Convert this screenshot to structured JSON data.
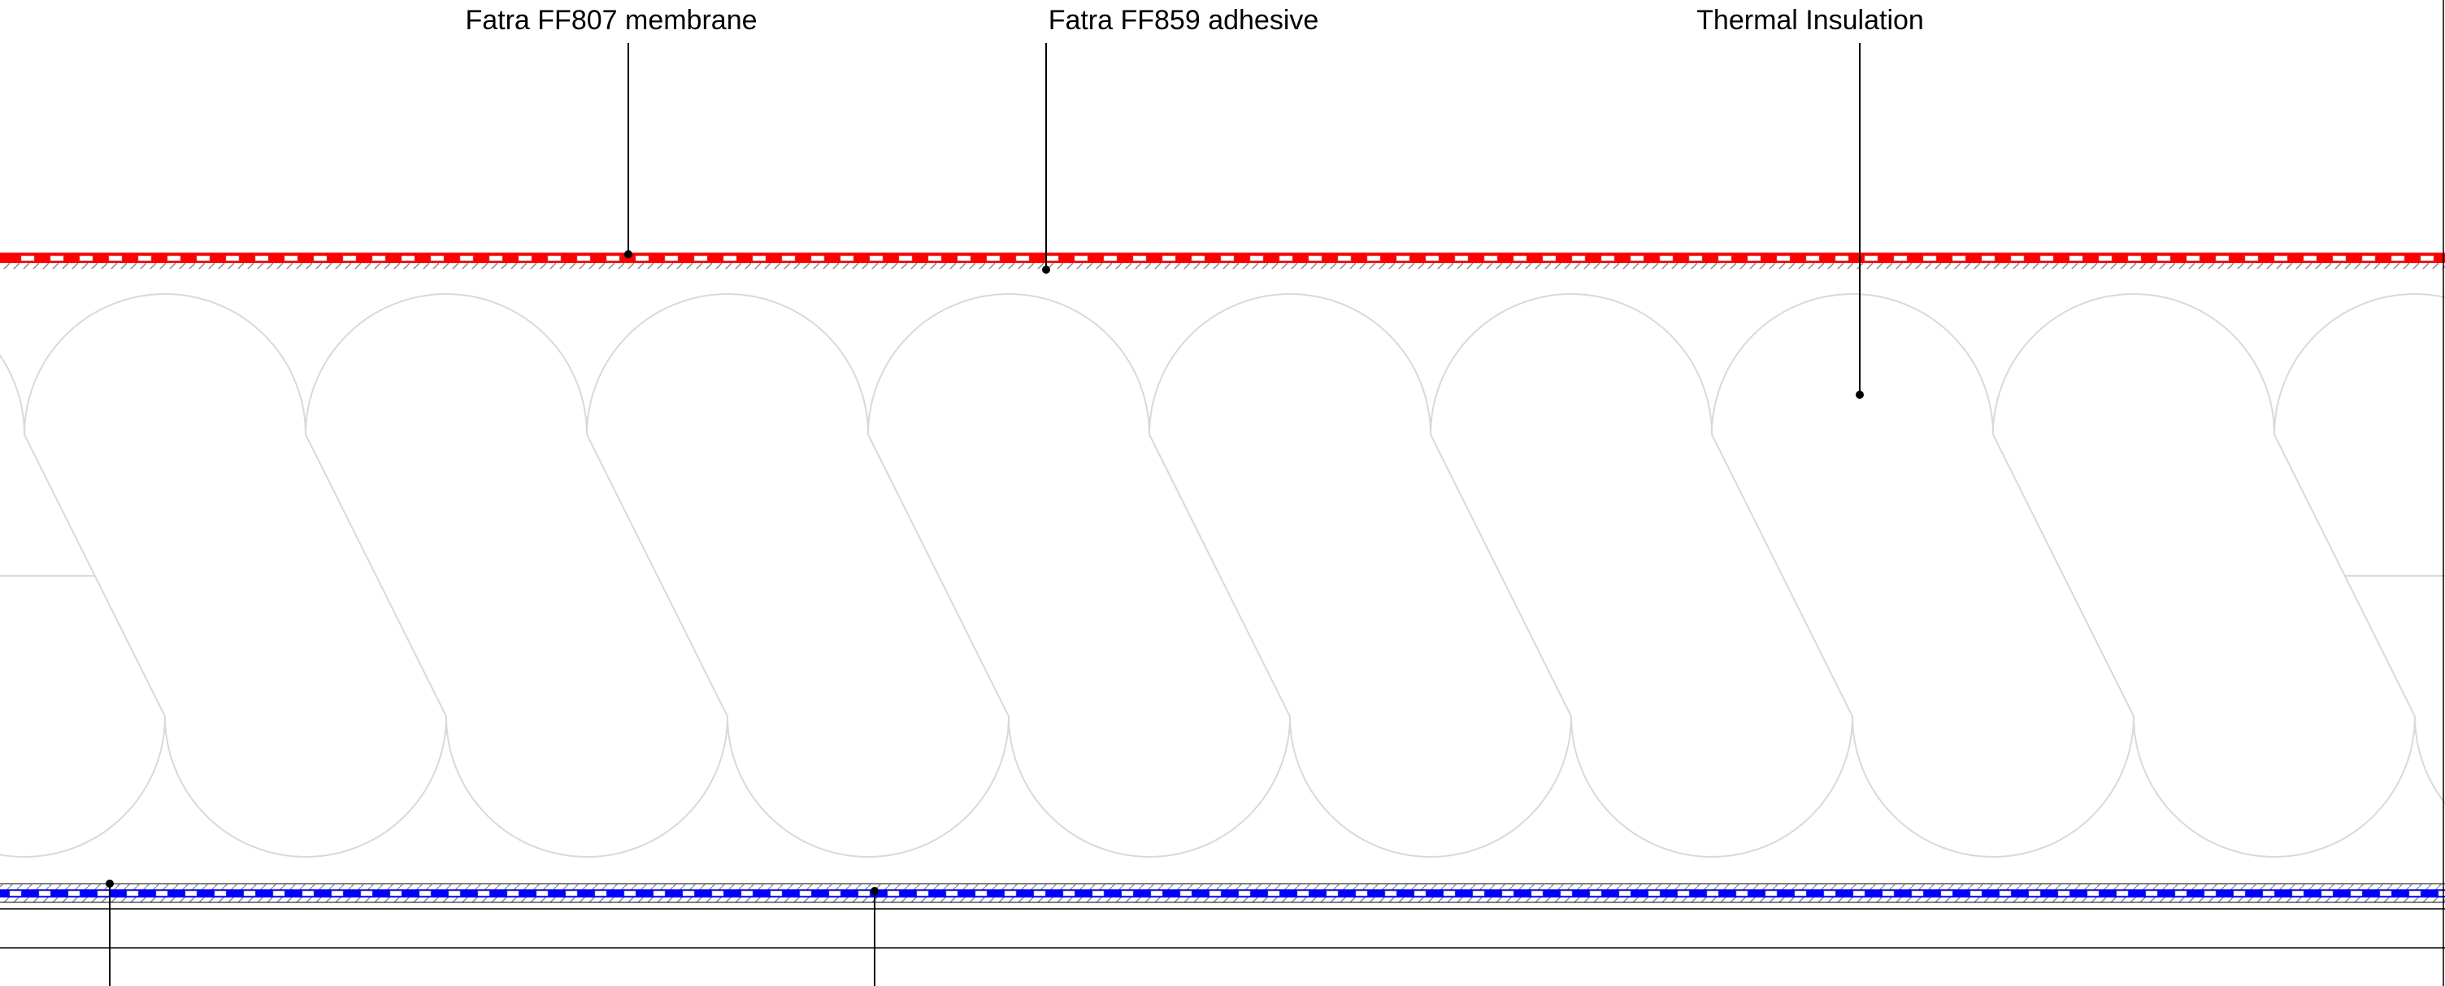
{
  "callouts": {
    "membrane": "Fatra FF807 membrane",
    "adhesive": "Fatra FF859 adhesive",
    "insulation": "Thermal Insulation"
  },
  "colors": {
    "membrane": "#ff0000",
    "vapour_layer": "#0000ff",
    "insulation_outline": "#d9d9d9",
    "hatch": "#888888",
    "leader": "#000000"
  }
}
